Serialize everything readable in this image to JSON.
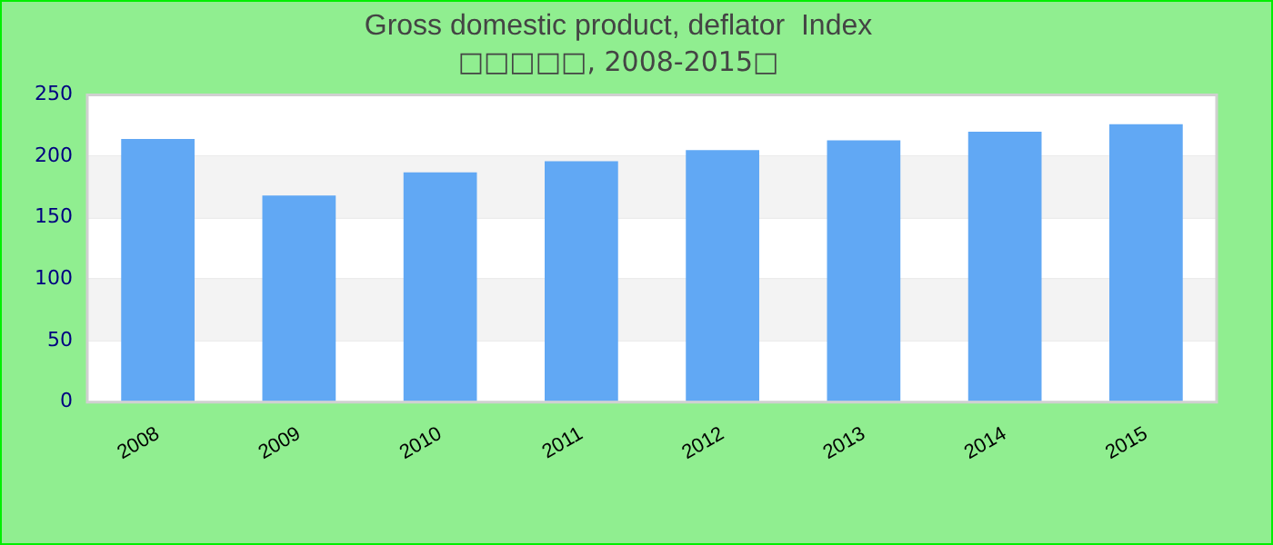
{
  "chart_data": {
    "type": "bar",
    "title": "Gross domestic product, deflator  Index",
    "subtitle": "□□□□□, 2008-2015□",
    "categories": [
      "2008",
      "2009",
      "2010",
      "2011",
      "2012",
      "2013",
      "2014",
      "2015"
    ],
    "values": [
      214,
      168,
      187,
      196,
      205,
      213,
      220,
      226
    ],
    "color": "#61a8f4",
    "ylim": [
      0,
      250
    ],
    "yticks": [
      0,
      50,
      100,
      150,
      200,
      250
    ],
    "grid": true,
    "legend": false
  }
}
